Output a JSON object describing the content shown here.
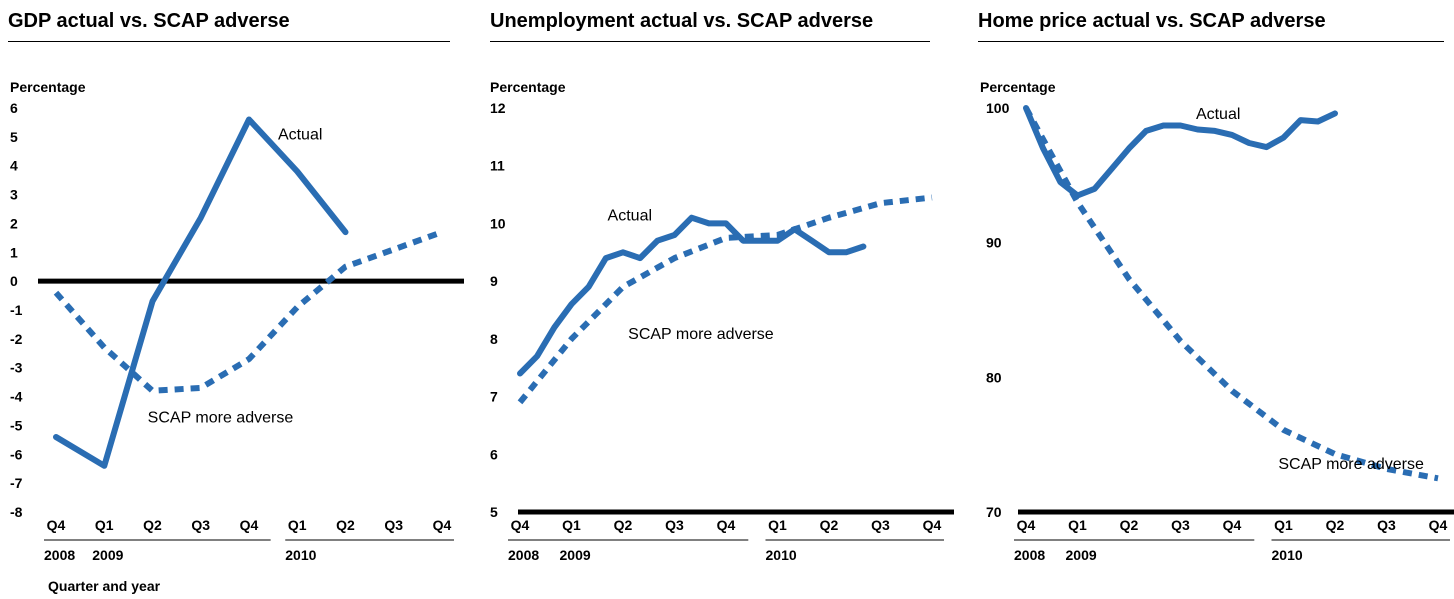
{
  "colors": {
    "series": "#2a6db3",
    "zero_line": "#000000",
    "text": "#000000"
  },
  "x_axis_caption": "Quarter and year",
  "chart_data": [
    {
      "type": "line",
      "title": "GDP actual vs. SCAP adverse",
      "ylabel": "Percentage",
      "xlabel": "Quarter and year",
      "ylim": [
        -8,
        6
      ],
      "yticks": [
        6,
        5,
        4,
        3,
        2,
        1,
        0,
        -1,
        -2,
        -3,
        -4,
        -5,
        -6,
        -7,
        -8
      ],
      "xlim": [
        0,
        8
      ],
      "xtick_labels": [
        "Q4",
        "Q1",
        "Q2",
        "Q3",
        "Q4",
        "Q1",
        "Q2",
        "Q3",
        "Q4"
      ],
      "year_labels": [
        {
          "label": "2008",
          "x": 0
        },
        {
          "label": "2009",
          "x": 1
        },
        {
          "label": "2010",
          "x": 5
        }
      ],
      "zero_line": 0,
      "series": [
        {
          "name": "Actual",
          "style": "solid",
          "x": [
            0,
            1,
            2,
            3,
            4,
            5,
            6
          ],
          "values": [
            -5.4,
            -6.4,
            -0.7,
            2.2,
            5.6,
            3.8,
            1.7
          ]
        },
        {
          "name": "SCAP more adverse",
          "style": "dashed",
          "x": [
            0,
            1,
            2,
            3,
            4,
            5,
            6,
            7,
            8
          ],
          "values": [
            -0.4,
            -2.3,
            -3.8,
            -3.7,
            -2.7,
            -0.9,
            0.5,
            1.1,
            1.7
          ]
        }
      ],
      "annotations": [
        {
          "text": "Actual",
          "x": 4.6,
          "y": 4.9
        },
        {
          "text": "SCAP more adverse",
          "x": 1.9,
          "y": -4.9
        }
      ]
    },
    {
      "type": "line",
      "title": "Unemployment actual vs. SCAP adverse",
      "ylabel": "Percentage",
      "ylim": [
        5,
        12
      ],
      "yticks": [
        12,
        11,
        10,
        9,
        8,
        7,
        6,
        5
      ],
      "xlim": [
        0,
        8
      ],
      "xtick_labels": [
        "Q4",
        "Q1",
        "Q2",
        "Q3",
        "Q4",
        "Q1",
        "Q2",
        "Q3",
        "Q4"
      ],
      "year_labels": [
        {
          "label": "2008",
          "x": 0
        },
        {
          "label": "2009",
          "x": 1
        },
        {
          "label": "2010",
          "x": 5
        }
      ],
      "series": [
        {
          "name": "Actual",
          "style": "solid",
          "x": [
            0,
            0.333,
            0.667,
            1,
            1.333,
            1.667,
            2,
            2.333,
            2.667,
            3,
            3.333,
            3.667,
            4,
            4.333,
            4.667,
            5,
            5.333,
            5.667,
            6,
            6.333,
            6.667
          ],
          "values": [
            7.4,
            7.7,
            8.2,
            8.6,
            8.9,
            9.4,
            9.5,
            9.4,
            9.7,
            9.8,
            10.1,
            10.0,
            10.0,
            9.7,
            9.7,
            9.7,
            9.9,
            9.7,
            9.5,
            9.5,
            9.6
          ]
        },
        {
          "name": "SCAP more adverse",
          "style": "dashed",
          "x": [
            0,
            1,
            2,
            3,
            4,
            5,
            6,
            7,
            8
          ],
          "values": [
            6.9,
            8.0,
            8.9,
            9.4,
            9.75,
            9.8,
            10.1,
            10.35,
            10.45
          ]
        }
      ],
      "annotations": [
        {
          "text": "Actual",
          "x": 1.7,
          "y": 10.05
        },
        {
          "text": "SCAP more adverse",
          "x": 2.1,
          "y": 8.0
        }
      ]
    },
    {
      "type": "line",
      "title": "Home price actual vs. SCAP adverse",
      "ylabel": "Percentage",
      "ylim": [
        70,
        100
      ],
      "yticks": [
        100,
        90,
        80,
        70
      ],
      "xlim": [
        0,
        8
      ],
      "xtick_labels": [
        "Q4",
        "Q1",
        "Q2",
        "Q3",
        "Q4",
        "Q1",
        "Q2",
        "Q3",
        "Q4"
      ],
      "year_labels": [
        {
          "label": "2008",
          "x": 0
        },
        {
          "label": "2009",
          "x": 1
        },
        {
          "label": "2010",
          "x": 5
        }
      ],
      "series": [
        {
          "name": "Actual",
          "style": "solid",
          "x": [
            0,
            0.333,
            0.667,
            1,
            1.333,
            1.667,
            2,
            2.333,
            2.667,
            3,
            3.333,
            3.667,
            4,
            4.333,
            4.667,
            5,
            5.333,
            5.667,
            6
          ],
          "values": [
            100.0,
            97.0,
            94.5,
            93.5,
            94.0,
            95.5,
            97.0,
            98.3,
            98.7,
            98.7,
            98.4,
            98.3,
            98.0,
            97.4,
            97.1,
            97.8,
            99.1,
            99.0,
            99.6
          ]
        },
        {
          "name": "SCAP more adverse",
          "style": "dashed",
          "x": [
            0,
            1,
            2,
            3,
            4,
            5,
            6,
            7,
            8
          ],
          "values": [
            100,
            93.0,
            87.3,
            82.7,
            79.0,
            76.1,
            74.3,
            73.2,
            72.5
          ]
        }
      ],
      "annotations": [
        {
          "text": "Actual",
          "x": 3.3,
          "y": 99.2
        },
        {
          "text": "SCAP more adverse",
          "x": 4.9,
          "y": 73.2
        }
      ]
    }
  ]
}
